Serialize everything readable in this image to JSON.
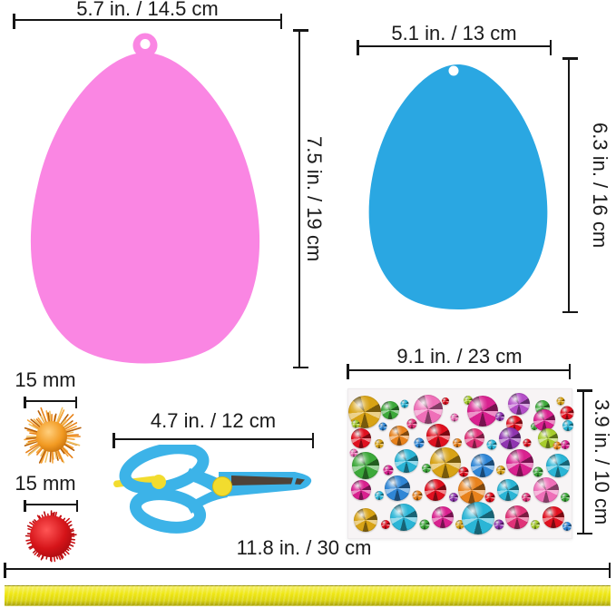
{
  "figure": {
    "background": "#ffffff",
    "line_color": "#161616",
    "text_color": "#1a1a1a"
  },
  "items": {
    "pink_egg": {
      "label": "Pink egg cutout",
      "width_label": "5.7 in. / 14.5 cm",
      "height_label": "7.5 in. / 19 cm",
      "color": "#fa86e3"
    },
    "blue_egg": {
      "label": "Blue egg cutout",
      "width_label": "5.1 in. / 13 cm",
      "height_label": "6.3 in. / 16 cm",
      "color": "#2aa7e2"
    },
    "orange_pompom": {
      "label": "Orange glitter pompom",
      "size_label": "15 mm",
      "core_colors": [
        "#ffcf7d",
        "#f29a22",
        "#c06a08"
      ],
      "spike_colors": [
        "#e8831a",
        "#f7a63a",
        "#b85f06",
        "#f0c060"
      ]
    },
    "red_pompom": {
      "label": "Red pompom",
      "size_label": "15 mm",
      "core_colors": [
        "#ff5555",
        "#d51419",
        "#a50a0e"
      ],
      "spike_colors": [
        "#d01216",
        "#b30d10"
      ]
    },
    "scissors": {
      "label": "Blue safety scissors",
      "length_label": "4.7 in. / 12 cm",
      "color": "#3cb3e8",
      "accent_color": "#f2dc2e",
      "blade_color": "#4e4238"
    },
    "gem_sheet": {
      "label": "Rhinestone gem sticker sheet",
      "width_label": "9.1 in. / 23 cm",
      "height_label": "3.9 in. / 10 cm",
      "sheet_color": "#f7f4f5",
      "palette": [
        "#e0101f",
        "#e03278",
        "#d9218f",
        "#ef6fb8",
        "#d8a315",
        "#e8821c",
        "#3da93a",
        "#a6cc2c",
        "#2ab5d6",
        "#2f86d6",
        "#8f35b0",
        "#b44fc8"
      ],
      "gems": [
        [
          18,
          25,
          36,
          4
        ],
        [
          46,
          23,
          20,
          6
        ],
        [
          62,
          16,
          9,
          8
        ],
        [
          88,
          22,
          32,
          3
        ],
        [
          107,
          13,
          8,
          0
        ],
        [
          117,
          31,
          9,
          3
        ],
        [
          132,
          12,
          10,
          7
        ],
        [
          148,
          24,
          34,
          2
        ],
        [
          167,
          30,
          10,
          10
        ],
        [
          183,
          38,
          18,
          0
        ],
        [
          188,
          16,
          24,
          11
        ],
        [
          205,
          41,
          8,
          6
        ],
        [
          214,
          20,
          16,
          6
        ],
        [
          216,
          34,
          24,
          2
        ],
        [
          234,
          13,
          9,
          4
        ],
        [
          241,
          26,
          15,
          0
        ],
        [
          242,
          40,
          12,
          8
        ],
        [
          8,
          38,
          9,
          7
        ],
        [
          70,
          38,
          11,
          1
        ],
        [
          38,
          41,
          9,
          9
        ],
        [
          14,
          54,
          22,
          0
        ],
        [
          34,
          60,
          10,
          4
        ],
        [
          56,
          51,
          22,
          5
        ],
        [
          78,
          59,
          11,
          9
        ],
        [
          99,
          51,
          26,
          0
        ],
        [
          120,
          59,
          10,
          5
        ],
        [
          139,
          54,
          22,
          1
        ],
        [
          158,
          61,
          11,
          8
        ],
        [
          178,
          54,
          24,
          10
        ],
        [
          197,
          59,
          9,
          0
        ],
        [
          220,
          54,
          22,
          7
        ],
        [
          239,
          61,
          10,
          2
        ],
        [
          230,
          62,
          9,
          5
        ],
        [
          6,
          70,
          9,
          3
        ],
        [
          19,
          84,
          30,
          6
        ],
        [
          44,
          89,
          11,
          2
        ],
        [
          64,
          79,
          26,
          8
        ],
        [
          86,
          87,
          10,
          6
        ],
        [
          107,
          81,
          34,
          4
        ],
        [
          127,
          91,
          11,
          0
        ],
        [
          148,
          84,
          26,
          9
        ],
        [
          168,
          89,
          10,
          4
        ],
        [
          189,
          81,
          30,
          2
        ],
        [
          209,
          91,
          11,
          6
        ],
        [
          231,
          84,
          26,
          8
        ],
        [
          14,
          111,
          22,
          2
        ],
        [
          34,
          117,
          10,
          8
        ],
        [
          54,
          109,
          28,
          9
        ],
        [
          76,
          117,
          11,
          5
        ],
        [
          96,
          111,
          24,
          0
        ],
        [
          116,
          119,
          10,
          10
        ],
        [
          136,
          111,
          30,
          5
        ],
        [
          156,
          119,
          11,
          0
        ],
        [
          176,
          111,
          24,
          8
        ],
        [
          196,
          119,
          10,
          1
        ],
        [
          218,
          111,
          28,
          3
        ],
        [
          239,
          119,
          10,
          6
        ],
        [
          19,
          144,
          26,
          4
        ],
        [
          41,
          149,
          10,
          0
        ],
        [
          61,
          141,
          30,
          8
        ],
        [
          84,
          149,
          11,
          6
        ],
        [
          104,
          141,
          24,
          2
        ],
        [
          123,
          149,
          10,
          4
        ],
        [
          143,
          142,
          36,
          8
        ],
        [
          166,
          149,
          11,
          10
        ],
        [
          186,
          141,
          26,
          1
        ],
        [
          206,
          149,
          10,
          7
        ],
        [
          226,
          141,
          24,
          0
        ],
        [
          241,
          151,
          10,
          9
        ]
      ]
    },
    "ribbon": {
      "label": "Yellow ribbon",
      "length_label": "11.8 in. / 30 cm",
      "color": "#efe714"
    }
  }
}
